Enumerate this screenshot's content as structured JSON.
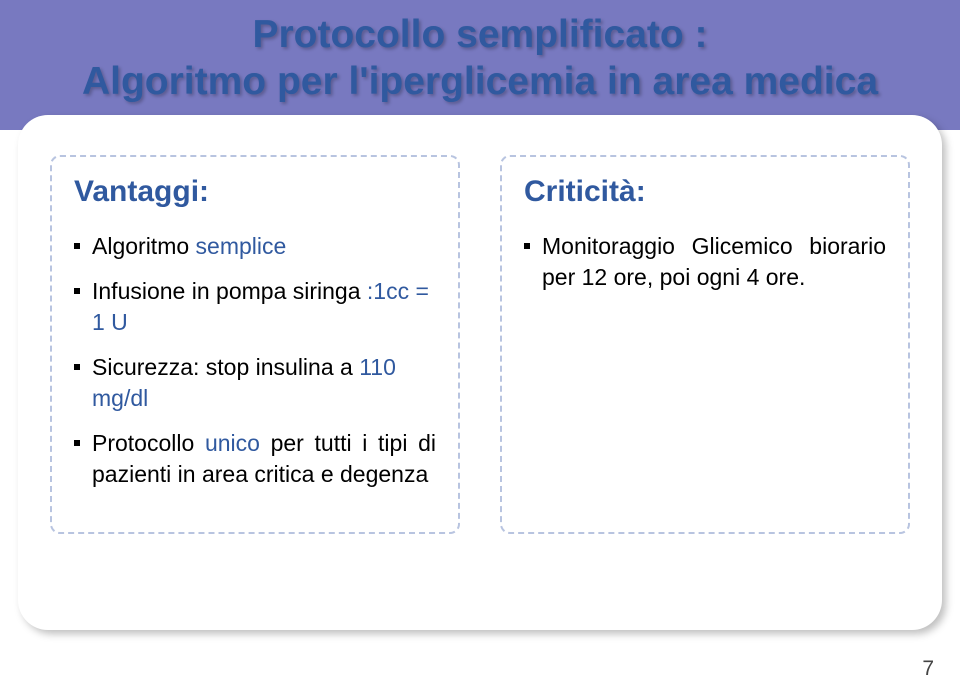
{
  "banner_color": "#7879c0",
  "title_color": "#30599f",
  "title_line1": "Protocollo semplificato :",
  "title_line2": "Algoritmo per l'iperglicemia in area medica",
  "left": {
    "heading": "Vantaggi:",
    "bullets": [
      {
        "pre": "Algoritmo ",
        "blue": "semplice",
        "post": ""
      },
      {
        "pre": "Infusione in pompa siringa ",
        "blue": ":1cc = 1 U",
        "post": ""
      },
      {
        "pre": "Sicurezza: stop insulina a ",
        "blue": "110 mg/dl",
        "post": ""
      },
      {
        "pre": "Protocollo ",
        "blue": "unico",
        "post": " per tutti i tipi di pazienti in area critica e degenza"
      }
    ]
  },
  "right": {
    "heading": "Criticità:",
    "bullets": [
      {
        "pre": "Monitoraggio Glicemico biorario per 12 ore, poi ogni 4 ore.",
        "blue": "",
        "post": ""
      }
    ]
  },
  "page_number": "7"
}
